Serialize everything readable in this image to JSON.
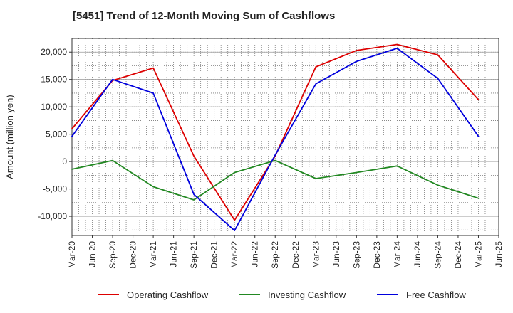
{
  "chart_data": {
    "type": "line",
    "title": "[5451]  Trend of 12-Month Moving Sum of Cashflows",
    "xlabel": "",
    "ylabel": "Amount (million yen)",
    "x_tick_labels": [
      "Mar-20",
      "Jun-20",
      "Sep-20",
      "Dec-20",
      "Mar-21",
      "Jun-21",
      "Sep-21",
      "Dec-21",
      "Mar-22",
      "Jun-22",
      "Sep-22",
      "Dec-22",
      "Mar-23",
      "Jun-23",
      "Sep-23",
      "Dec-23",
      "Mar-24",
      "Jun-24",
      "Sep-24",
      "Dec-24",
      "Mar-25",
      "Jun-25"
    ],
    "y_ticks": [
      -10000,
      -5000,
      0,
      5000,
      10000,
      15000,
      20000
    ],
    "y_tick_labels": [
      "-10,000",
      "-5,000",
      "0",
      "5,000",
      "10,000",
      "15,000",
      "20,000"
    ],
    "ylim": [
      -13500,
      22500
    ],
    "grid": true,
    "legend_position": "bottom",
    "series": [
      {
        "name": "Operating Cashflow",
        "color": "#dd0000",
        "x": [
          "Mar-20",
          "Sep-20",
          "Mar-21",
          "Sep-21",
          "Mar-22",
          "Sep-22",
          "Mar-23",
          "Sep-23",
          "Mar-24",
          "Sep-24",
          "Mar-25"
        ],
        "values": [
          6000,
          14800,
          17100,
          1000,
          -10700,
          1000,
          17300,
          20300,
          21400,
          19500,
          11300
        ]
      },
      {
        "name": "Investing Cashflow",
        "color": "#228822",
        "x": [
          "Mar-20",
          "Sep-20",
          "Mar-21",
          "Sep-21",
          "Mar-22",
          "Sep-22",
          "Mar-23",
          "Sep-23",
          "Mar-24",
          "Sep-24",
          "Mar-25"
        ],
        "values": [
          -1400,
          200,
          -4600,
          -7000,
          -2000,
          200,
          -3100,
          -2000,
          -800,
          -4300,
          -6700
        ]
      },
      {
        "name": "Free Cashflow",
        "color": "#0000dd",
        "x": [
          "Mar-20",
          "Sep-20",
          "Mar-21",
          "Sep-21",
          "Mar-22",
          "Sep-22",
          "Mar-23",
          "Sep-23",
          "Mar-24",
          "Sep-24",
          "Mar-25"
        ],
        "values": [
          4600,
          15000,
          12500,
          -6000,
          -12600,
          1200,
          14200,
          18300,
          20700,
          15200,
          4600
        ]
      }
    ]
  }
}
